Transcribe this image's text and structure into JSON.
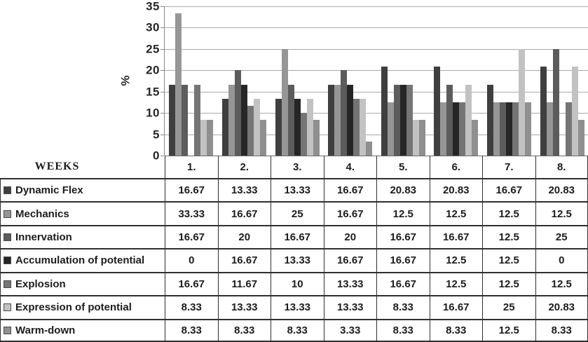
{
  "chart_data": {
    "type": "bar",
    "title": "",
    "xlabel": "WEEKS",
    "ylabel": "%",
    "ylim": [
      0,
      35
    ],
    "yticks": [
      0,
      5,
      10,
      15,
      20,
      25,
      30,
      35
    ],
    "grid": "horizontal",
    "legend_position": "table-left-keys",
    "categories": [
      "1.",
      "2.",
      "3.",
      "4.",
      "5.",
      "6.",
      "7.",
      "8."
    ],
    "series": [
      {
        "name": "Dynamic Flex",
        "color": "#3F3F3F",
        "values": [
          16.67,
          13.33,
          13.33,
          16.67,
          20.83,
          20.83,
          16.67,
          20.83
        ]
      },
      {
        "name": "Mechanics",
        "color": "#969696",
        "values": [
          33.33,
          16.67,
          25,
          16.67,
          12.5,
          12.5,
          12.5,
          12.5
        ]
      },
      {
        "name": "Innervation",
        "color": "#5C5C5C",
        "values": [
          16.67,
          20,
          16.67,
          20,
          16.67,
          16.67,
          12.5,
          25
        ]
      },
      {
        "name": "Accumulation of potential",
        "color": "#262626",
        "values": [
          0,
          16.67,
          13.33,
          16.67,
          16.67,
          12.5,
          12.5,
          0
        ]
      },
      {
        "name": "Explosion",
        "color": "#757575",
        "values": [
          16.67,
          11.67,
          10,
          13.33,
          16.67,
          12.5,
          12.5,
          12.5
        ]
      },
      {
        "name": "Expression of potential",
        "color": "#C2C2C2",
        "values": [
          8.33,
          13.33,
          13.33,
          13.33,
          8.33,
          16.67,
          25,
          20.83
        ]
      },
      {
        "name": "Warm-down",
        "color": "#8F8F8F",
        "values": [
          8.33,
          8.33,
          8.33,
          3.33,
          8.33,
          8.33,
          12.5,
          8.33
        ]
      }
    ],
    "colors": {
      "gridline": "#ABABAB",
      "axis": "#8A8A8A",
      "table_border": "#2F2F2F"
    }
  }
}
